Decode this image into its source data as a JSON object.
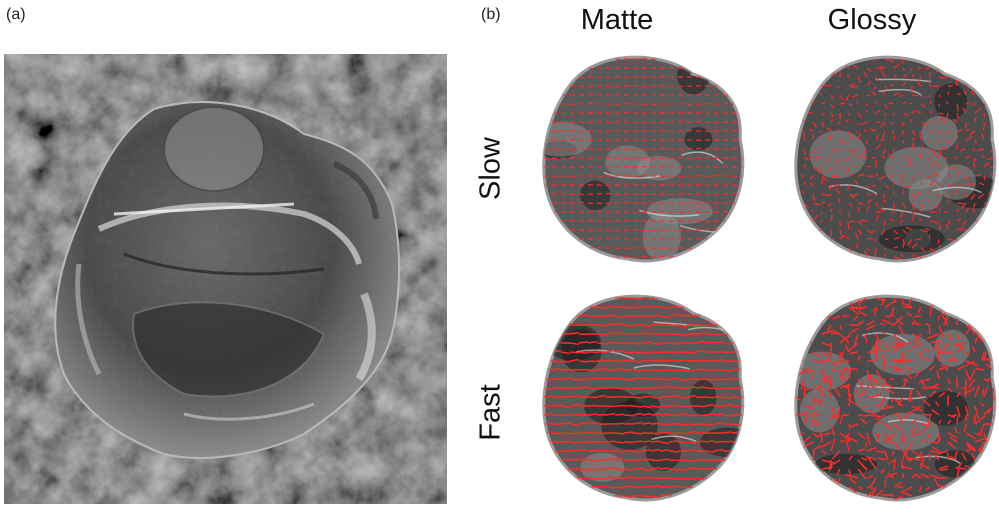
{
  "panel_labels": {
    "a": "(a)",
    "b": "(b)"
  },
  "columns": {
    "matte": "Matte",
    "glossy": "Glossy"
  },
  "rows": {
    "slow": "Slow",
    "fast": "Fast"
  },
  "colors": {
    "flow_arrows": "#ff2a2a",
    "background_texture": "#2a2a2a",
    "object_gray": "#8a8a8a"
  },
  "images": {
    "left": "glossy-crumpled-object-on-noise-texture",
    "thumbnails": [
      "matte-slow-flow",
      "glossy-slow-flow",
      "matte-fast-flow",
      "glossy-fast-flow"
    ]
  }
}
